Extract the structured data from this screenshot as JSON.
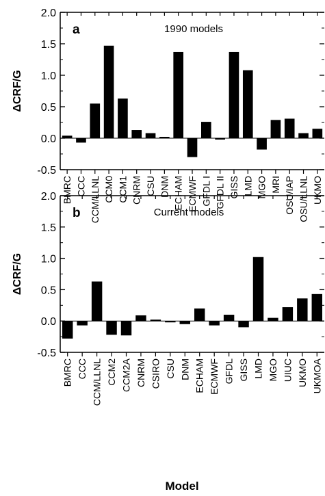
{
  "chart_data": [
    {
      "type": "bar",
      "panel_label": "a",
      "title": "1990 models",
      "ylabel": "ΔCRF/G",
      "xlabel": "",
      "ylim": [
        -0.5,
        2.0
      ],
      "yticks": [
        "-0.5",
        "0.0",
        "0.5",
        "1.0",
        "1.5",
        "2.0"
      ],
      "categories": [
        "BMRC",
        "CCC",
        "CCM/LLNL",
        "CCM0",
        "CCM1",
        "CNRM",
        "CSU",
        "DNM",
        "ECHAM",
        "ECMWF",
        "GFDL I",
        "GFDL II",
        "GISS",
        "LMD",
        "MGO",
        "MRI",
        "OSU/IAP",
        "OSU/LLNL",
        "UKMO"
      ],
      "values": [
        0.04,
        -0.07,
        0.55,
        1.47,
        0.63,
        0.13,
        0.08,
        0.02,
        1.37,
        -0.3,
        0.26,
        -0.02,
        1.37,
        1.08,
        -0.18,
        0.29,
        0.31,
        0.08,
        0.15
      ],
      "bar_color": "#000000"
    },
    {
      "type": "bar",
      "panel_label": "b",
      "title": "Current models",
      "ylabel": "ΔCRF/G",
      "xlabel": "Model",
      "ylim": [
        -0.5,
        2.0
      ],
      "yticks": [
        "-0.5",
        "0.0",
        "0.5",
        "1.0",
        "1.5",
        "2.0"
      ],
      "categories": [
        "BMRC",
        "CCC",
        "CCM/LLNL",
        "CCM2",
        "CCM2A",
        "CNRM",
        "CSIRO",
        "CSU",
        "DNM",
        "ECHAM",
        "ECMWF",
        "GFDL",
        "GISS",
        "LMD",
        "MGO",
        "UIUC",
        "UKMO",
        "UKMOA"
      ],
      "values": [
        -0.28,
        -0.07,
        0.63,
        -0.22,
        -0.23,
        0.09,
        0.02,
        -0.02,
        -0.05,
        0.2,
        -0.07,
        0.1,
        -0.1,
        1.02,
        0.05,
        0.22,
        0.36,
        0.43
      ],
      "bar_color": "#000000"
    }
  ]
}
